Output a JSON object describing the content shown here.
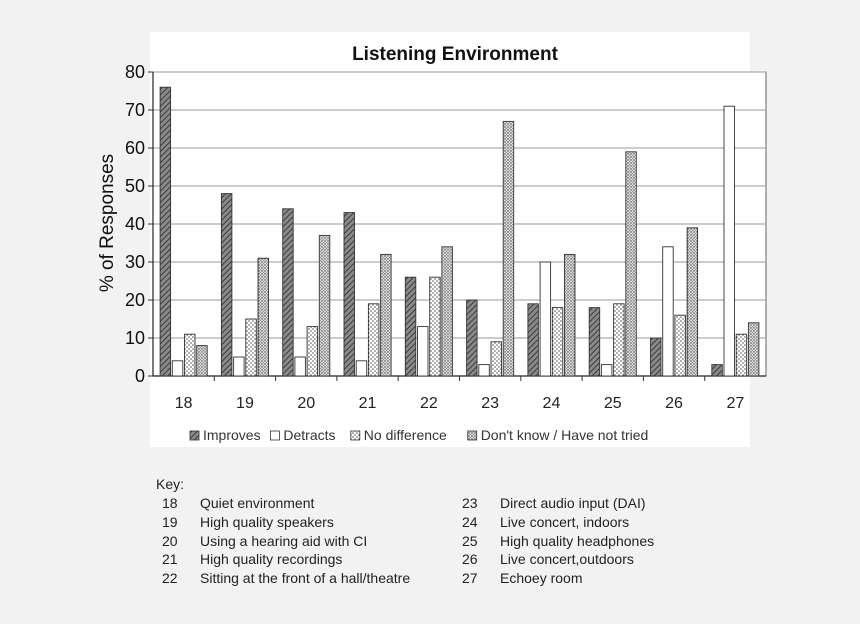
{
  "chart_data": {
    "type": "bar",
    "title": "Listening Environment",
    "ylabel": "% of Responses",
    "xlabel": "",
    "ylim": [
      0,
      80
    ],
    "yticks": [
      0,
      10,
      20,
      30,
      40,
      50,
      60,
      70,
      80
    ],
    "grid": true,
    "legend_position": "bottom",
    "categories": [
      "18",
      "19",
      "20",
      "21",
      "22",
      "23",
      "24",
      "25",
      "26",
      "27"
    ],
    "series": [
      {
        "name": "Improves",
        "pattern": "hatch",
        "values": [
          76,
          48,
          44,
          43,
          26,
          20,
          19,
          18,
          10,
          3
        ]
      },
      {
        "name": "Detracts",
        "pattern": "white",
        "values": [
          4,
          5,
          5,
          4,
          13,
          3,
          30,
          3,
          34,
          71
        ]
      },
      {
        "name": "No difference",
        "pattern": "dots",
        "values": [
          11,
          15,
          13,
          19,
          26,
          9,
          18,
          19,
          16,
          11
        ]
      },
      {
        "name": "Don't know / Have not tried",
        "pattern": "dots-dense",
        "values": [
          8,
          31,
          37,
          32,
          34,
          67,
          32,
          59,
          39,
          14
        ]
      }
    ]
  },
  "key": {
    "title": "Key:",
    "items": [
      {
        "num": "18",
        "label": "Quiet environment"
      },
      {
        "num": "19",
        "label": "High quality speakers"
      },
      {
        "num": "20",
        "label": "Using a hearing aid with CI"
      },
      {
        "num": "21",
        "label": "High quality recordings"
      },
      {
        "num": "22",
        "label": "Sitting at the front of a hall/theatre"
      },
      {
        "num": "23",
        "label": "Direct audio input (DAI)"
      },
      {
        "num": "24",
        "label": "Live concert, indoors"
      },
      {
        "num": "25",
        "label": "High quality headphones"
      },
      {
        "num": "26",
        "label": "Live concert,outdoors"
      },
      {
        "num": "27",
        "label": "Echoey room"
      }
    ]
  },
  "colors": {
    "bar_stroke": "#333333",
    "grid": "#9a9a9a",
    "plot_bg": "#ffffff",
    "page_bg": "#f2f2f2"
  }
}
